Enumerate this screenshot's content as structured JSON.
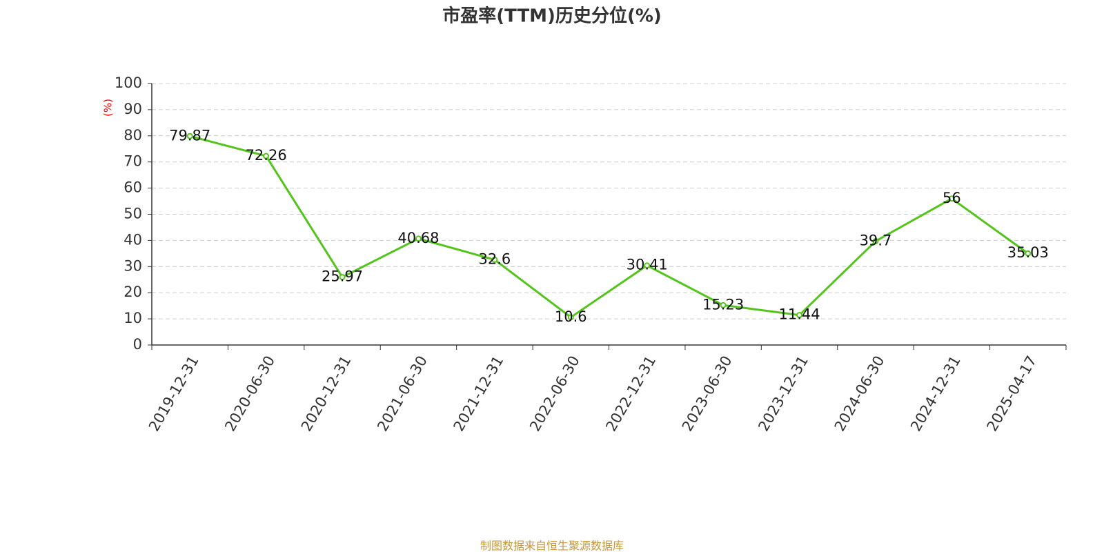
{
  "chart_data": {
    "type": "line",
    "title": "市盈率(TTM)历史分位(%)",
    "y_label": "(%)",
    "categories": [
      "2019-12-31",
      "2020-06-30",
      "2020-12-31",
      "2021-06-30",
      "2021-12-31",
      "2022-06-30",
      "2022-12-31",
      "2023-06-30",
      "2023-12-31",
      "2024-06-30",
      "2024-12-31",
      "2025-04-17"
    ],
    "series": [
      {
        "name": "市盈率(TTM)历史分位",
        "color": "#52c41a",
        "values": [
          79.87,
          72.26,
          25.97,
          40.68,
          32.6,
          10.6,
          30.41,
          15.23,
          11.44,
          39.7,
          56,
          35.03
        ]
      }
    ],
    "ylim": [
      0,
      100
    ],
    "yticks": [
      0,
      10,
      20,
      30,
      40,
      50,
      60,
      70,
      80,
      90,
      100
    ],
    "grid": true,
    "source": "制图数据来自恒生聚源数据库"
  }
}
